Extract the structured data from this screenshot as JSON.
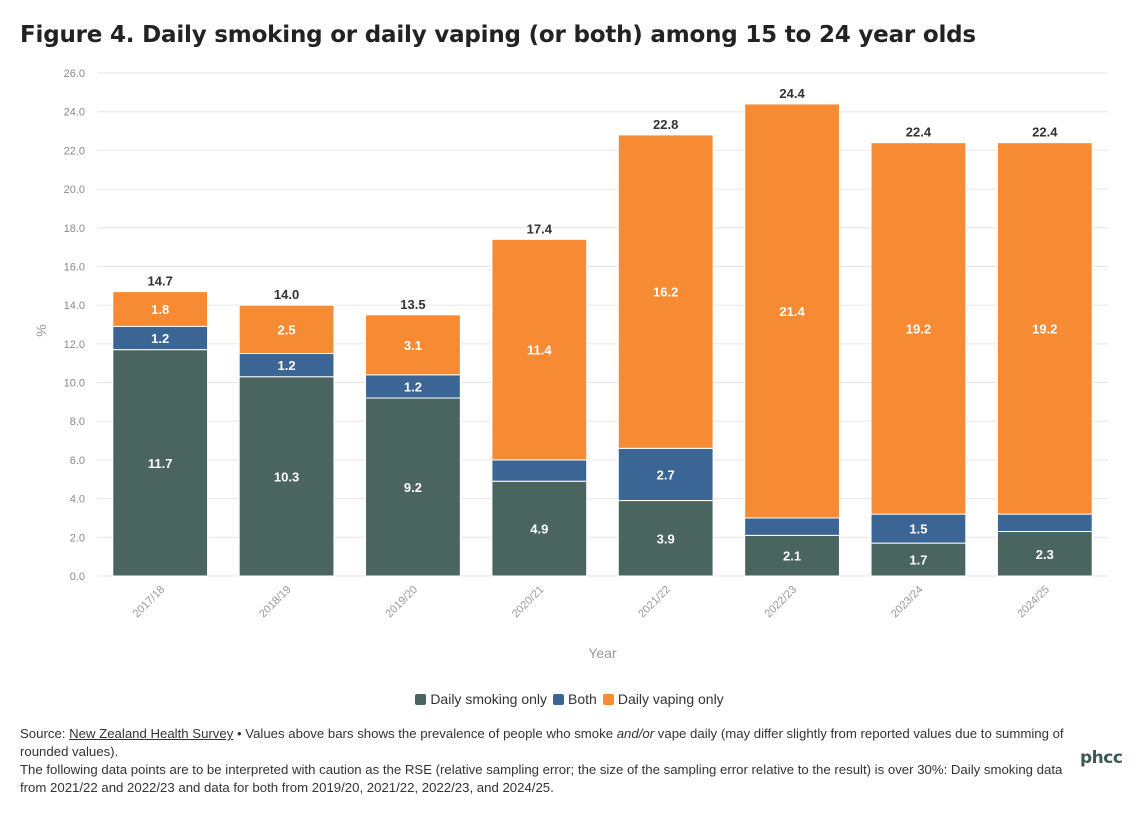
{
  "title": "Figure 4. Daily smoking or daily vaping (or both) among 15 to 24 year olds",
  "chart_data": {
    "type": "bar",
    "stacked": true,
    "categories": [
      "2017/18",
      "2018/19",
      "2019/20",
      "2020/21",
      "2021/22",
      "2022/23",
      "2023/24",
      "2024/25"
    ],
    "series": [
      {
        "name": "Daily smoking only",
        "color": "#4a6560",
        "values": [
          11.7,
          10.3,
          9.2,
          4.9,
          3.9,
          2.1,
          1.7,
          2.3
        ],
        "labels": [
          "11.7",
          "10.3",
          "9.2",
          "4.9",
          "3.9",
          "2.1",
          "1.7",
          "2.3"
        ]
      },
      {
        "name": "Both",
        "color": "#3b6594",
        "values": [
          1.2,
          1.2,
          1.2,
          1.1,
          2.7,
          0.9,
          1.5,
          0.9
        ],
        "labels": [
          "1.2",
          "1.2",
          "1.2",
          "",
          "2.7",
          "",
          "1.5",
          ""
        ]
      },
      {
        "name": "Daily vaping only",
        "color": "#f68b33",
        "values": [
          1.8,
          2.5,
          3.1,
          11.4,
          16.2,
          21.4,
          19.2,
          19.2
        ],
        "labels": [
          "1.8",
          "2.5",
          "3.1",
          "11.4",
          "16.2",
          "21.4",
          "19.2",
          "19.2"
        ]
      }
    ],
    "totals": [
      "14.7",
      "14.0",
      "13.5",
      "17.4",
      "22.8",
      "24.4",
      "22.4",
      "22.4"
    ],
    "ylim": [
      0,
      26
    ],
    "ytick_step": 2,
    "ytick_labels": [
      "0.0",
      "2.0",
      "4.0",
      "6.0",
      "8.0",
      "10.0",
      "12.0",
      "14.0",
      "16.0",
      "18.0",
      "20.0",
      "22.0",
      "24.0",
      "26.0"
    ],
    "xlabel": "Year",
    "ylabel": "%",
    "grid": true,
    "legend_position": "bottom"
  },
  "footer": {
    "source_prefix": "Source: ",
    "source_link": "New Zealand Health Survey",
    "note_part1": " • Values above bars shows the prevalence of people who smoke ",
    "note_emph": "and/or",
    "note_part2": " vape daily (may differ slightly from reported values due to summing of rounded values).",
    "caution": "The following data points are to be interpreted with caution as the RSE (relative sampling error; the size of the sampling error relative to the result) is over 30%: Daily smoking data from 2021/22 and 2022/23 and data for both from 2019/20, 2021/22, 2022/23, and 2024/25."
  },
  "logo_text": "phcc"
}
